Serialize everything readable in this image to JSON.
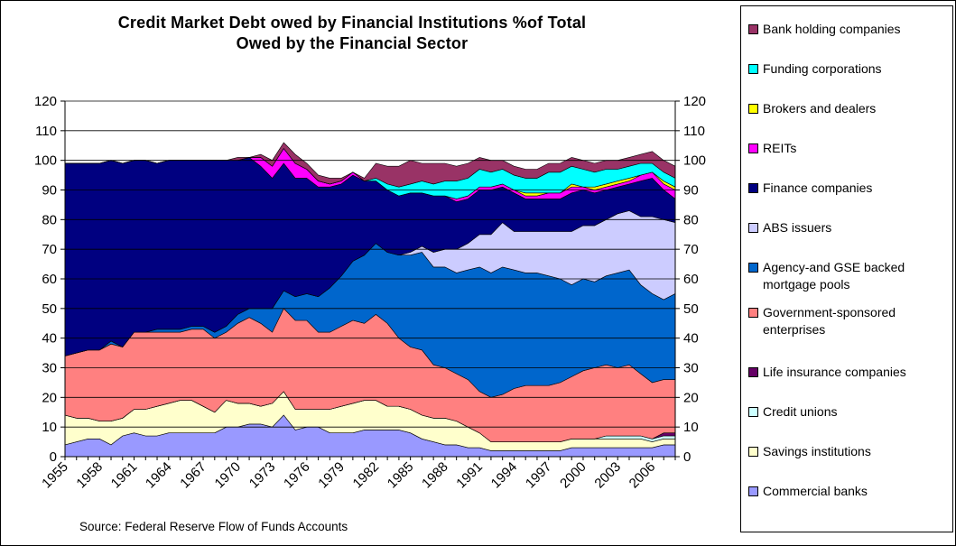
{
  "chart_data": {
    "type": "area",
    "title": "Credit Market Debt owed by Financial Institutions % of Total Owed by the Financial Sector",
    "title_lines": [
      "Credit Market Debt owed by Financial Institutions %of Total",
      "Owed by the Financial Sector"
    ],
    "source": "Source: Federal Reserve Flow of Funds Accounts",
    "xlabel": "",
    "ylabel": "",
    "stacked": true,
    "ylim": [
      0,
      120
    ],
    "yticks": [
      "0",
      "10",
      "20",
      "30",
      "40",
      "50",
      "60",
      "70",
      "80",
      "90",
      "100",
      "110",
      "120"
    ],
    "xticks": [
      "1955",
      "1958",
      "1961",
      "1964",
      "1967",
      "1970",
      "1973",
      "1976",
      "1979",
      "1982",
      "1985",
      "1988",
      "1991",
      "1994",
      "1997",
      "2000",
      "2003",
      "2006"
    ],
    "grid": true,
    "legend_position": "right",
    "x": [
      1955,
      1956,
      1957,
      1958,
      1959,
      1960,
      1961,
      1962,
      1963,
      1964,
      1965,
      1966,
      1967,
      1968,
      1969,
      1970,
      1971,
      1972,
      1973,
      1974,
      1975,
      1976,
      1977,
      1978,
      1979,
      1980,
      1981,
      1982,
      1983,
      1984,
      1985,
      1986,
      1987,
      1988,
      1989,
      1990,
      1991,
      1992,
      1993,
      1994,
      1995,
      1996,
      1997,
      1998,
      1999,
      2000,
      2001,
      2002,
      2003,
      2004,
      2005,
      2006,
      2007,
      2008
    ],
    "series": [
      {
        "name": "Commercial banks",
        "color": "#9999ff",
        "values": [
          4,
          5,
          6,
          6,
          4,
          7,
          8,
          7,
          7,
          8,
          8,
          8,
          8,
          8,
          10,
          10,
          11,
          11,
          10,
          14,
          9,
          10,
          10,
          8,
          8,
          8,
          9,
          9,
          9,
          9,
          8,
          6,
          5,
          4,
          4,
          3,
          3,
          2,
          2,
          2,
          2,
          2,
          2,
          2,
          3,
          3,
          3,
          3,
          3,
          3,
          3,
          3,
          4,
          4
        ]
      },
      {
        "name": "Savings institutions",
        "color": "#ffffcc",
        "values": [
          10,
          8,
          7,
          6,
          8,
          6,
          8,
          9,
          10,
          10,
          11,
          11,
          9,
          7,
          9,
          8,
          7,
          6,
          8,
          8,
          7,
          6,
          6,
          8,
          9,
          10,
          10,
          10,
          8,
          8,
          8,
          8,
          8,
          9,
          8,
          7,
          5,
          3,
          3,
          3,
          3,
          3,
          3,
          3,
          3,
          3,
          3,
          3,
          3,
          3,
          3,
          2,
          2,
          2
        ]
      },
      {
        "name": "Credit unions",
        "color": "#ccffff",
        "values": [
          0,
          0,
          0,
          0,
          0,
          0,
          0,
          0,
          0,
          0,
          0,
          0,
          0,
          0,
          0,
          0,
          0,
          0,
          0,
          0,
          0,
          0,
          0,
          0,
          0,
          0,
          0,
          0,
          0,
          0,
          0,
          0,
          0,
          0,
          0,
          0,
          0,
          0,
          0,
          0,
          0,
          0,
          0,
          0,
          0,
          0,
          0,
          1,
          1,
          1,
          1,
          1,
          1,
          1
        ]
      },
      {
        "name": "Life insurance companies",
        "color": "#660066",
        "values": [
          0,
          0,
          0,
          0,
          0,
          0,
          0,
          0,
          0,
          0,
          0,
          0,
          0,
          0,
          0,
          0,
          0,
          0,
          0,
          0,
          0,
          0,
          0,
          0,
          0,
          0,
          0,
          0,
          0,
          0,
          0,
          0,
          0,
          0,
          0,
          0,
          0,
          0,
          0,
          0,
          0,
          0,
          0,
          0,
          0,
          0,
          0,
          0,
          0,
          0,
          0,
          0,
          1,
          1
        ]
      },
      {
        "name": "Government-sponsored enterprises",
        "color": "#ff8080",
        "values": [
          20,
          22,
          23,
          24,
          26,
          24,
          26,
          26,
          25,
          24,
          23,
          24,
          26,
          25,
          23,
          27,
          29,
          28,
          24,
          28,
          30,
          30,
          26,
          26,
          27,
          28,
          26,
          29,
          28,
          23,
          21,
          22,
          18,
          17,
          16,
          16,
          14,
          15,
          16,
          18,
          19,
          19,
          19,
          20,
          21,
          23,
          24,
          24,
          23,
          24,
          21,
          19,
          18,
          18
        ]
      },
      {
        "name": "Agency-and GSE backed mortgage pools",
        "color": "#0066cc",
        "values": [
          0,
          0,
          0,
          0,
          1,
          0,
          0,
          0,
          1,
          1,
          1,
          1,
          1,
          2,
          2,
          3,
          3,
          5,
          8,
          6,
          8,
          9,
          12,
          15,
          17,
          20,
          23,
          24,
          24,
          28,
          31,
          33,
          33,
          34,
          34,
          37,
          42,
          42,
          43,
          40,
          38,
          38,
          37,
          35,
          31,
          31,
          29,
          30,
          32,
          32,
          30,
          30,
          27,
          29
        ]
      },
      {
        "name": "ABS issuers",
        "color": "#ccccff",
        "values": [
          0,
          0,
          0,
          0,
          0,
          0,
          0,
          0,
          0,
          0,
          0,
          0,
          0,
          0,
          0,
          0,
          0,
          0,
          0,
          0,
          0,
          0,
          0,
          0,
          0,
          0,
          0,
          0,
          0,
          0,
          1,
          2,
          5,
          6,
          8,
          9,
          11,
          13,
          15,
          13,
          14,
          14,
          15,
          16,
          18,
          18,
          19,
          19,
          20,
          20,
          23,
          26,
          27,
          24
        ]
      },
      {
        "name": "Finance companies",
        "color": "#000080",
        "values": [
          65,
          64,
          63,
          63,
          61,
          62,
          58,
          58,
          56,
          57,
          57,
          56,
          56,
          58,
          56,
          52,
          51,
          48,
          44,
          43,
          40,
          39,
          37,
          34,
          31,
          29,
          25,
          21,
          21,
          20,
          20,
          18,
          19,
          18,
          16,
          15,
          15,
          15,
          12,
          13,
          11,
          11,
          11,
          11,
          13,
          12,
          11,
          10,
          9,
          9,
          12,
          13,
          10,
          8
        ]
      },
      {
        "name": "REITs",
        "color": "#ff00ff",
        "values": [
          0,
          0,
          0,
          0,
          0,
          0,
          0,
          0,
          0,
          0,
          0,
          0,
          0,
          0,
          0,
          0,
          0,
          3,
          4,
          5,
          5,
          3,
          2,
          1,
          1,
          1,
          0,
          0,
          0,
          0,
          0,
          0,
          0,
          0,
          1,
          1,
          1,
          1,
          1,
          1,
          1,
          1,
          2,
          2,
          2,
          1,
          1,
          1,
          1,
          1,
          2,
          2,
          2,
          3
        ]
      },
      {
        "name": "Brokers and dealers",
        "color": "#ffff00",
        "values": [
          0,
          0,
          0,
          0,
          0,
          0,
          0,
          0,
          0,
          0,
          0,
          0,
          0,
          0,
          0,
          0,
          0,
          0,
          0,
          0,
          0,
          0,
          0,
          0,
          0,
          0,
          0,
          0,
          0,
          0,
          0,
          0,
          0,
          0,
          0,
          0,
          0,
          0,
          0,
          0,
          1,
          1,
          0,
          0,
          1,
          0,
          1,
          1,
          1,
          1,
          0,
          0,
          1,
          1
        ]
      },
      {
        "name": "Funding corporations",
        "color": "#00ffff",
        "values": [
          0,
          0,
          0,
          0,
          0,
          0,
          0,
          0,
          0,
          0,
          0,
          0,
          0,
          0,
          0,
          0,
          0,
          0,
          0,
          0,
          0,
          0,
          0,
          0,
          0,
          0,
          0,
          1,
          2,
          3,
          3,
          4,
          4,
          5,
          6,
          6,
          6,
          5,
          5,
          5,
          5,
          5,
          7,
          7,
          6,
          6,
          5,
          5,
          4,
          4,
          4,
          3,
          3,
          3
        ]
      },
      {
        "name": "Bank holding companies",
        "color": "#993366",
        "values": [
          0,
          0,
          0,
          0,
          0,
          0,
          0,
          0,
          0,
          0,
          0,
          0,
          0,
          0,
          0,
          1,
          0,
          1,
          2,
          2,
          3,
          2,
          2,
          2,
          1,
          0,
          1,
          5,
          6,
          7,
          8,
          6,
          7,
          6,
          5,
          5,
          4,
          4,
          3,
          3,
          3,
          3,
          3,
          3,
          3,
          3,
          3,
          3,
          3,
          3,
          3,
          4,
          4,
          4
        ]
      }
    ]
  }
}
